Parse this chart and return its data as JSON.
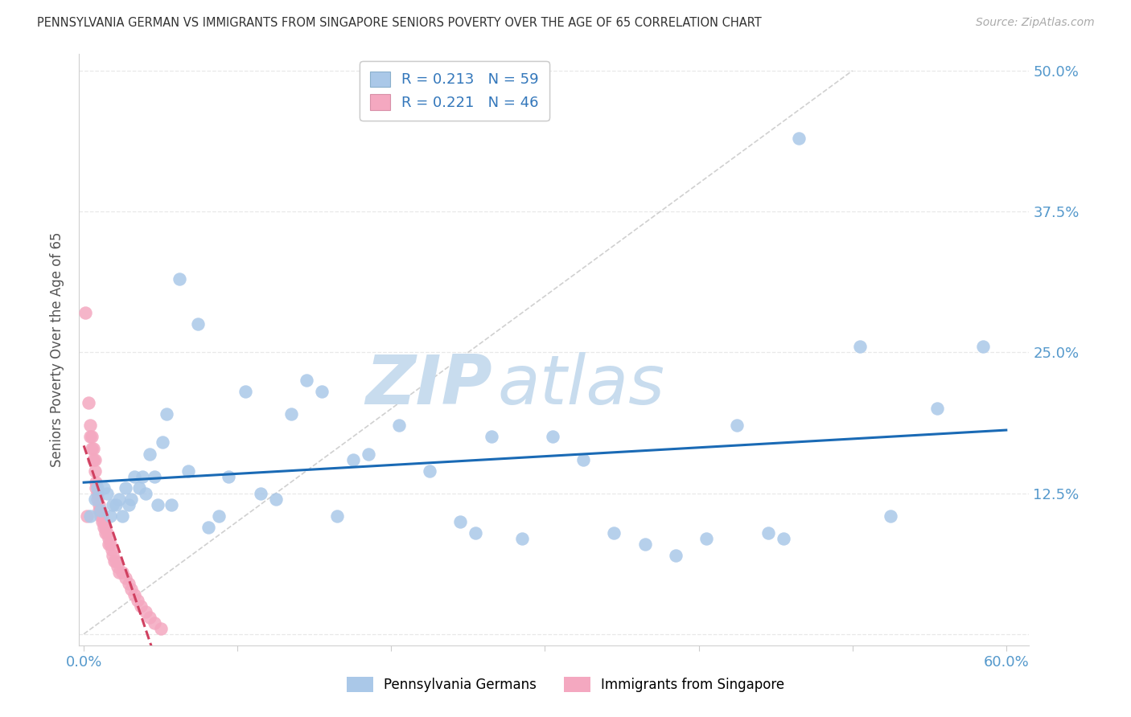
{
  "title": "PENNSYLVANIA GERMAN VS IMMIGRANTS FROM SINGAPORE SENIORS POVERTY OVER THE AGE OF 65 CORRELATION CHART",
  "source": "Source: ZipAtlas.com",
  "ylabel": "Seniors Poverty Over the Age of 65",
  "xlim": [
    -0.003,
    0.615
  ],
  "ylim": [
    -0.01,
    0.515
  ],
  "yticks": [
    0.0,
    0.125,
    0.25,
    0.375,
    0.5
  ],
  "ytick_labels": [
    "",
    "12.5%",
    "25.0%",
    "37.5%",
    "50.0%"
  ],
  "xtick_positions": [
    0.0,
    0.1,
    0.2,
    0.3,
    0.4,
    0.5,
    0.6
  ],
  "xtick_labels": [
    "0.0%",
    "",
    "",
    "",
    "",
    "",
    "60.0%"
  ],
  "blue_R": 0.213,
  "blue_N": 59,
  "pink_R": 0.221,
  "pink_N": 46,
  "blue_color": "#aac8e8",
  "pink_color": "#f4a8c0",
  "blue_line_color": "#1a6ab5",
  "pink_line_color": "#d04060",
  "blue_scatter_x": [
    0.004,
    0.007,
    0.009,
    0.011,
    0.013,
    0.015,
    0.017,
    0.019,
    0.021,
    0.023,
    0.025,
    0.027,
    0.029,
    0.031,
    0.033,
    0.036,
    0.038,
    0.04,
    0.043,
    0.046,
    0.048,
    0.051,
    0.054,
    0.057,
    0.062,
    0.068,
    0.074,
    0.081,
    0.088,
    0.094,
    0.105,
    0.115,
    0.125,
    0.135,
    0.145,
    0.155,
    0.165,
    0.175,
    0.185,
    0.205,
    0.225,
    0.245,
    0.255,
    0.265,
    0.285,
    0.305,
    0.325,
    0.345,
    0.365,
    0.385,
    0.405,
    0.425,
    0.445,
    0.465,
    0.455,
    0.505,
    0.525,
    0.555,
    0.585
  ],
  "blue_scatter_y": [
    0.105,
    0.12,
    0.13,
    0.11,
    0.13,
    0.125,
    0.105,
    0.115,
    0.115,
    0.12,
    0.105,
    0.13,
    0.115,
    0.12,
    0.14,
    0.13,
    0.14,
    0.125,
    0.16,
    0.14,
    0.115,
    0.17,
    0.195,
    0.115,
    0.315,
    0.145,
    0.275,
    0.095,
    0.105,
    0.14,
    0.215,
    0.125,
    0.12,
    0.195,
    0.225,
    0.215,
    0.105,
    0.155,
    0.16,
    0.185,
    0.145,
    0.1,
    0.09,
    0.175,
    0.085,
    0.175,
    0.155,
    0.09,
    0.08,
    0.07,
    0.085,
    0.185,
    0.09,
    0.44,
    0.085,
    0.255,
    0.105,
    0.2,
    0.255
  ],
  "pink_scatter_x": [
    0.001,
    0.002,
    0.003,
    0.004,
    0.004,
    0.005,
    0.005,
    0.006,
    0.006,
    0.007,
    0.007,
    0.008,
    0.008,
    0.009,
    0.009,
    0.01,
    0.01,
    0.011,
    0.011,
    0.012,
    0.012,
    0.013,
    0.013,
    0.014,
    0.014,
    0.015,
    0.016,
    0.016,
    0.017,
    0.018,
    0.019,
    0.02,
    0.021,
    0.022,
    0.023,
    0.025,
    0.027,
    0.029,
    0.031,
    0.033,
    0.035,
    0.037,
    0.04,
    0.043,
    0.046,
    0.05
  ],
  "pink_scatter_y": [
    0.285,
    0.105,
    0.205,
    0.185,
    0.175,
    0.175,
    0.165,
    0.165,
    0.155,
    0.155,
    0.145,
    0.135,
    0.13,
    0.125,
    0.12,
    0.115,
    0.11,
    0.11,
    0.105,
    0.105,
    0.1,
    0.1,
    0.095,
    0.095,
    0.09,
    0.09,
    0.085,
    0.08,
    0.08,
    0.075,
    0.07,
    0.065,
    0.065,
    0.06,
    0.055,
    0.055,
    0.05,
    0.045,
    0.04,
    0.035,
    0.03,
    0.025,
    0.02,
    0.015,
    0.01,
    0.005
  ],
  "watermark_zip": "ZIP",
  "watermark_atlas": "atlas",
  "background_color": "#ffffff",
  "grid_color": "#e8e8e8",
  "diag_line_color": "#d0d0d0"
}
